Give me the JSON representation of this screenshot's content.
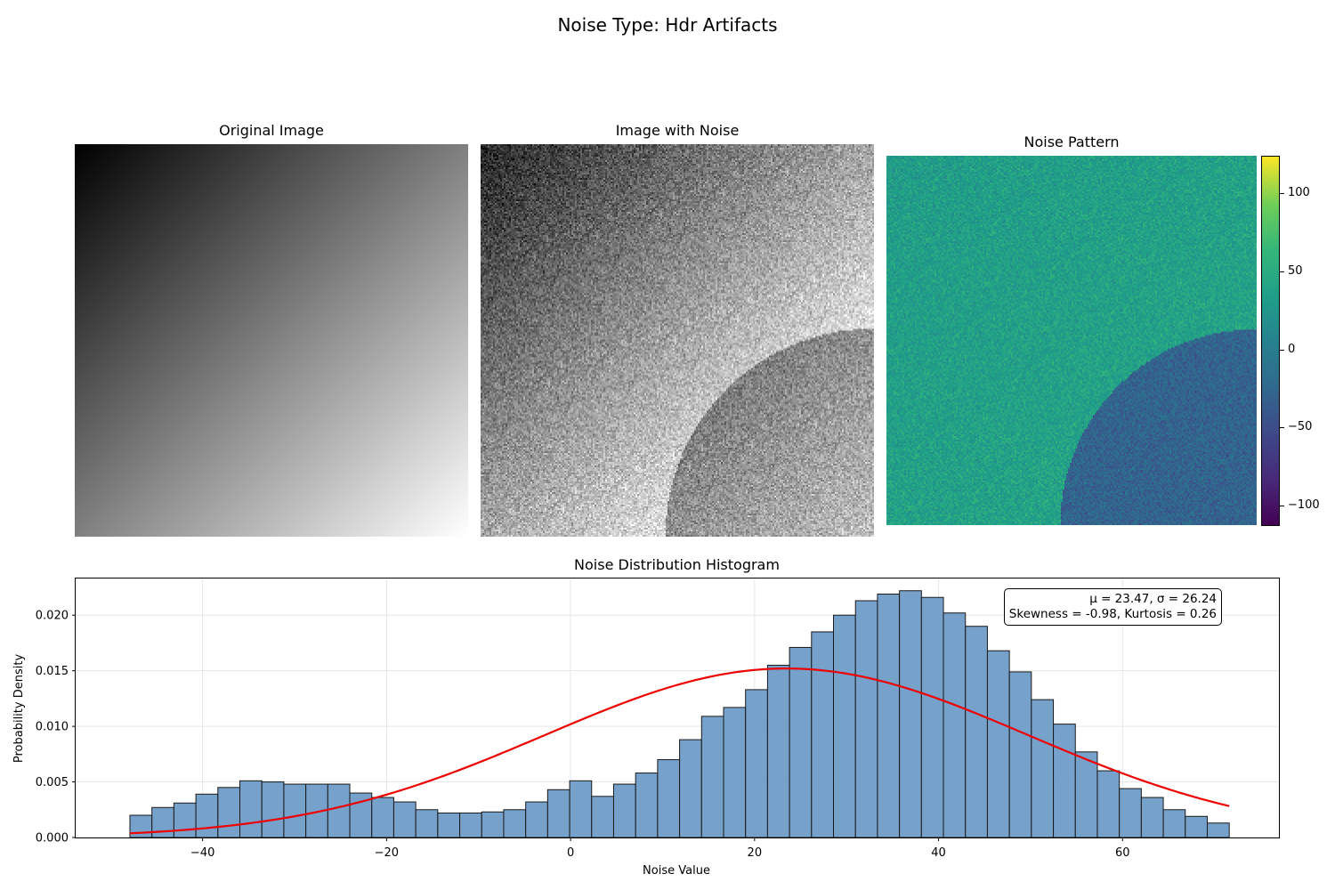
{
  "figure": {
    "suptitle": "Noise Type: Hdr Artifacts"
  },
  "panels": {
    "original_title": "Original Image",
    "noisy_title": "Image with Noise",
    "noise_title": "Noise Pattern",
    "colorbar": {
      "colormap": "viridis",
      "range": [
        -113,
        124
      ],
      "ticks": [
        100,
        50,
        0,
        -50,
        -100
      ],
      "tick_labels": [
        "100",
        "50",
        "0",
        "−50",
        "−100"
      ]
    }
  },
  "stats": {
    "line1": "μ = 23.47, σ = 26.24",
    "line2": "Skewness = -0.98, Kurtosis = 0.26"
  },
  "chart_data": {
    "type": "bar",
    "title": "Noise Distribution Histogram",
    "xlabel": "Noise Value",
    "ylabel": "Probability Density",
    "xlim": [
      -53.8,
      77.0
    ],
    "ylim": [
      0,
      0.0233
    ],
    "xticks": [
      -40,
      -20,
      0,
      20,
      40,
      60
    ],
    "xtick_labels": [
      "−40",
      "−20",
      "0",
      "20",
      "40",
      "60"
    ],
    "yticks": [
      0.0,
      0.005,
      0.01,
      0.015,
      0.02
    ],
    "ytick_labels": [
      "0.000",
      "0.005",
      "0.010",
      "0.015",
      "0.020"
    ],
    "grid": true,
    "bin_start": -47.9,
    "bin_width": 2.39,
    "values": [
      0.002,
      0.0027,
      0.0031,
      0.0039,
      0.0045,
      0.0051,
      0.005,
      0.0048,
      0.0048,
      0.0048,
      0.004,
      0.0036,
      0.0032,
      0.0025,
      0.0022,
      0.0022,
      0.0023,
      0.0025,
      0.0032,
      0.0043,
      0.0051,
      0.0037,
      0.0048,
      0.0058,
      0.007,
      0.0088,
      0.0109,
      0.0117,
      0.0133,
      0.0155,
      0.0171,
      0.0185,
      0.02,
      0.0213,
      0.0219,
      0.0222,
      0.0216,
      0.0202,
      0.019,
      0.0168,
      0.0149,
      0.0124,
      0.0102,
      0.0077,
      0.006,
      0.0044,
      0.0036,
      0.0025,
      0.0019,
      0.0013
    ],
    "bar_color": "#6f9cc8",
    "bar_edge_color": "#1a1a1a",
    "fit_curve": {
      "type": "normal",
      "mu": 23.47,
      "sigma": 26.24,
      "color": "#ee0000"
    }
  }
}
